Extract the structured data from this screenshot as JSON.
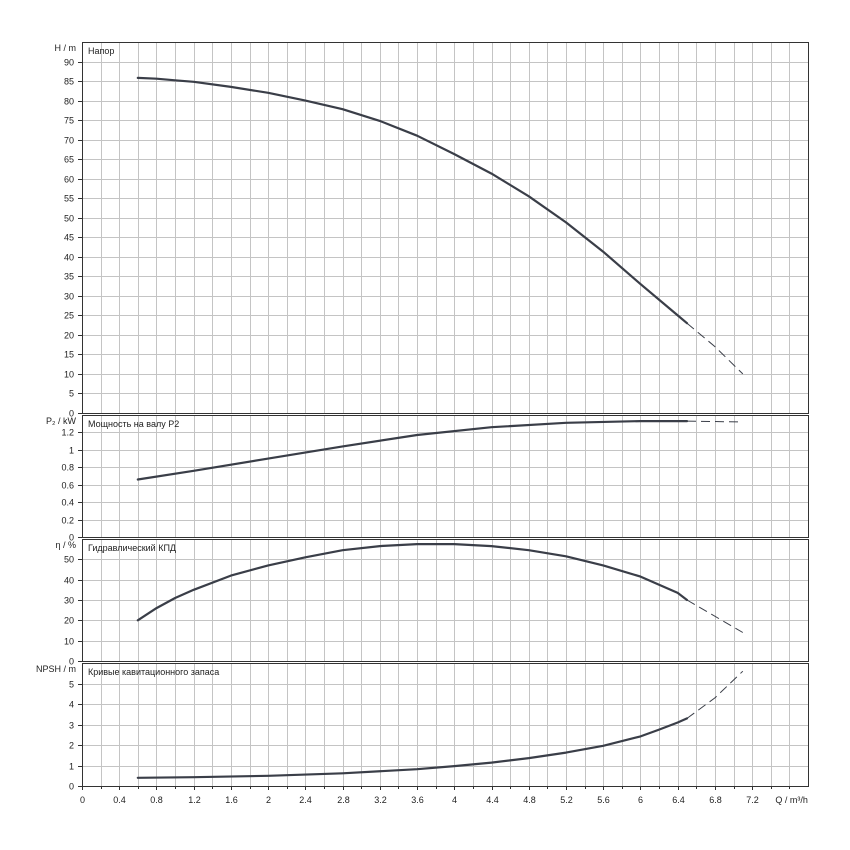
{
  "chart_data": {
    "type": "line",
    "xlabel": "Q / m³/h",
    "xlim": [
      0,
      7.8
    ],
    "xticks": [
      "0",
      "0.4",
      "0.8",
      "1.2",
      "1.6",
      "2",
      "2.4",
      "2.8",
      "3.2",
      "3.6",
      "4",
      "4.4",
      "4.8",
      "5.2",
      "5.6",
      "6",
      "6.4",
      "6.8",
      "7.2"
    ],
    "panels": [
      {
        "title": "Напор",
        "ylabel": "H / m",
        "ylim": [
          0,
          95
        ],
        "yticks": [
          "0",
          "5",
          "10",
          "15",
          "20",
          "25",
          "30",
          "35",
          "40",
          "45",
          "50",
          "55",
          "60",
          "65",
          "70",
          "75",
          "80",
          "85",
          "90"
        ],
        "solid": {
          "x": [
            0.6,
            0.8,
            1.0,
            1.2,
            1.6,
            2.0,
            2.4,
            2.8,
            3.2,
            3.6,
            4.0,
            4.4,
            4.8,
            5.2,
            5.6,
            6.0,
            6.4,
            6.5
          ],
          "y": [
            85.8,
            85.6,
            85.2,
            84.8,
            83.5,
            82.0,
            80.0,
            77.8,
            74.8,
            71.0,
            66.3,
            61.3,
            55.5,
            48.8,
            41.3,
            33.0,
            25.0,
            23.0
          ]
        },
        "dashed": {
          "x": [
            6.5,
            6.8,
            7.1
          ],
          "y": [
            23.0,
            17.0,
            10.0
          ]
        }
      },
      {
        "title": "Мощность на валу P2",
        "ylabel": "P₂ / kW",
        "ylim": [
          0,
          1.4
        ],
        "yticks": [
          "0",
          "0.2",
          "0.4",
          "0.6",
          "0.8",
          "1",
          "1.2"
        ],
        "solid": {
          "x": [
            0.6,
            1.2,
            2.0,
            2.8,
            3.6,
            4.4,
            5.2,
            6.0,
            6.5
          ],
          "y": [
            0.66,
            0.76,
            0.9,
            1.04,
            1.17,
            1.26,
            1.31,
            1.33,
            1.33
          ]
        },
        "dashed": {
          "x": [
            6.5,
            7.1
          ],
          "y": [
            1.33,
            1.32
          ]
        }
      },
      {
        "title": "Гидравлический КПД",
        "ylabel": "η / %",
        "ylim": [
          0,
          60
        ],
        "yticks": [
          "0",
          "10",
          "20",
          "30",
          "40",
          "50"
        ],
        "solid": {
          "x": [
            0.6,
            0.8,
            1.0,
            1.2,
            1.6,
            2.0,
            2.4,
            2.8,
            3.2,
            3.6,
            4.0,
            4.4,
            4.8,
            5.2,
            5.6,
            6.0,
            6.4,
            6.5
          ],
          "y": [
            20,
            26,
            31,
            35,
            42,
            47,
            51,
            54.5,
            56.5,
            57.5,
            57.5,
            56.5,
            54.5,
            51.5,
            47,
            41.5,
            33.5,
            30
          ]
        },
        "dashed": {
          "x": [
            6.5,
            7.1
          ],
          "y": [
            30,
            14
          ]
        }
      },
      {
        "title": "Кривые кавитационного запаса",
        "ylabel": "NPSH / m",
        "ylim": [
          0,
          6
        ],
        "yticks": [
          "0",
          "1",
          "2",
          "3",
          "4",
          "5"
        ],
        "solid": {
          "x": [
            0.6,
            1.2,
            2.0,
            2.8,
            3.6,
            4.0,
            4.4,
            4.8,
            5.2,
            5.6,
            6.0,
            6.2,
            6.4,
            6.5
          ],
          "y": [
            0.4,
            0.43,
            0.5,
            0.62,
            0.82,
            0.97,
            1.14,
            1.36,
            1.63,
            1.96,
            2.42,
            2.75,
            3.1,
            3.3
          ]
        },
        "dashed": {
          "x": [
            6.5,
            6.8,
            7.1
          ],
          "y": [
            3.3,
            4.3,
            5.6
          ]
        }
      }
    ]
  }
}
